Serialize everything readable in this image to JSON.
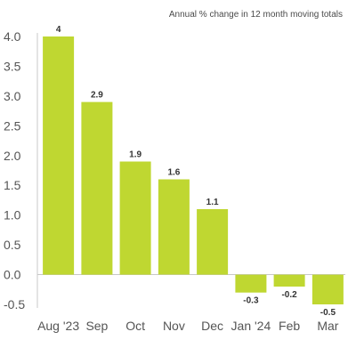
{
  "chart_data": {
    "type": "bar",
    "subtitle": "Annual % change in 12 month moving totals",
    "categories": [
      "Aug '23",
      "Sep",
      "Oct",
      "Nov",
      "Dec",
      "Jan '24",
      "Feb",
      "Mar"
    ],
    "values": [
      4,
      2.9,
      1.9,
      1.6,
      1.1,
      -0.3,
      -0.2,
      -0.5
    ],
    "value_labels": [
      "4",
      "2.9",
      "1.9",
      "1.6",
      "1.1",
      "-0.3",
      "-0.2",
      "-0.5"
    ],
    "y_ticks": [
      "4.0",
      "3.5",
      "3.0",
      "2.5",
      "2.0",
      "1.5",
      "1.0",
      "0.5",
      "0.0",
      "-0.5"
    ],
    "ylim": [
      -0.5,
      4.0
    ],
    "grid": false,
    "legend": "none",
    "bar_color": "#bfd731",
    "axis_color": "#c8c8c8"
  }
}
